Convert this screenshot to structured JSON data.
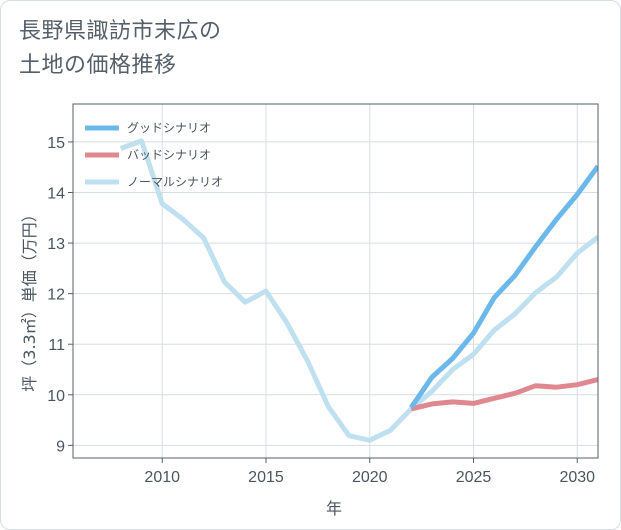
{
  "title_line1": "長野県諏訪市末広の",
  "title_line2": "土地の価格推移",
  "colors": {
    "good": "#6cb8ea",
    "bad": "#e0888f",
    "normal": "#bfe0ef",
    "grid": "#d8dde2",
    "frame": "#555f6a"
  },
  "chart_data": {
    "type": "line",
    "xlabel": "年",
    "ylabel": "坪（3.3㎡）単価（万円）",
    "xlim": [
      2005.7,
      2031
    ],
    "ylim": [
      8.75,
      15.75
    ],
    "xticks": [
      2010,
      2015,
      2020,
      2025,
      2030
    ],
    "yticks": [
      9,
      10,
      11,
      12,
      13,
      14,
      15
    ],
    "grid": true,
    "legend_position": "top-left",
    "series": [
      {
        "name": "グッドシナリオ",
        "color_key": "good",
        "points": [
          [
            2022,
            9.75
          ],
          [
            2023,
            10.35
          ],
          [
            2024,
            10.72
          ],
          [
            2025,
            11.22
          ],
          [
            2026,
            11.92
          ],
          [
            2027,
            12.36
          ],
          [
            2028,
            12.93
          ],
          [
            2029,
            13.47
          ],
          [
            2030,
            13.96
          ],
          [
            2031,
            14.52
          ]
        ]
      },
      {
        "name": "バッドシナリオ",
        "color_key": "bad",
        "points": [
          [
            2022,
            9.72
          ],
          [
            2023,
            9.82
          ],
          [
            2024,
            9.86
          ],
          [
            2025,
            9.83
          ],
          [
            2026,
            9.93
          ],
          [
            2027,
            10.03
          ],
          [
            2028,
            10.18
          ],
          [
            2029,
            10.15
          ],
          [
            2030,
            10.2
          ],
          [
            2031,
            10.3
          ]
        ]
      },
      {
        "name": "ノーマルシナリオ",
        "color_key": "normal",
        "points": [
          [
            2008,
            14.87
          ],
          [
            2009,
            15.02
          ],
          [
            2010,
            13.78
          ],
          [
            2011,
            13.47
          ],
          [
            2012,
            13.1
          ],
          [
            2013,
            12.23
          ],
          [
            2014,
            11.83
          ],
          [
            2015,
            12.05
          ],
          [
            2016,
            11.43
          ],
          [
            2017,
            10.67
          ],
          [
            2018,
            9.77
          ],
          [
            2019,
            9.19
          ],
          [
            2020,
            9.1
          ],
          [
            2021,
            9.3
          ],
          [
            2022,
            9.72
          ],
          [
            2023,
            10.07
          ],
          [
            2024,
            10.5
          ],
          [
            2025,
            10.8
          ],
          [
            2026,
            11.28
          ],
          [
            2027,
            11.6
          ],
          [
            2028,
            12.02
          ],
          [
            2029,
            12.33
          ],
          [
            2030,
            12.8
          ],
          [
            2031,
            13.12
          ]
        ]
      }
    ]
  }
}
